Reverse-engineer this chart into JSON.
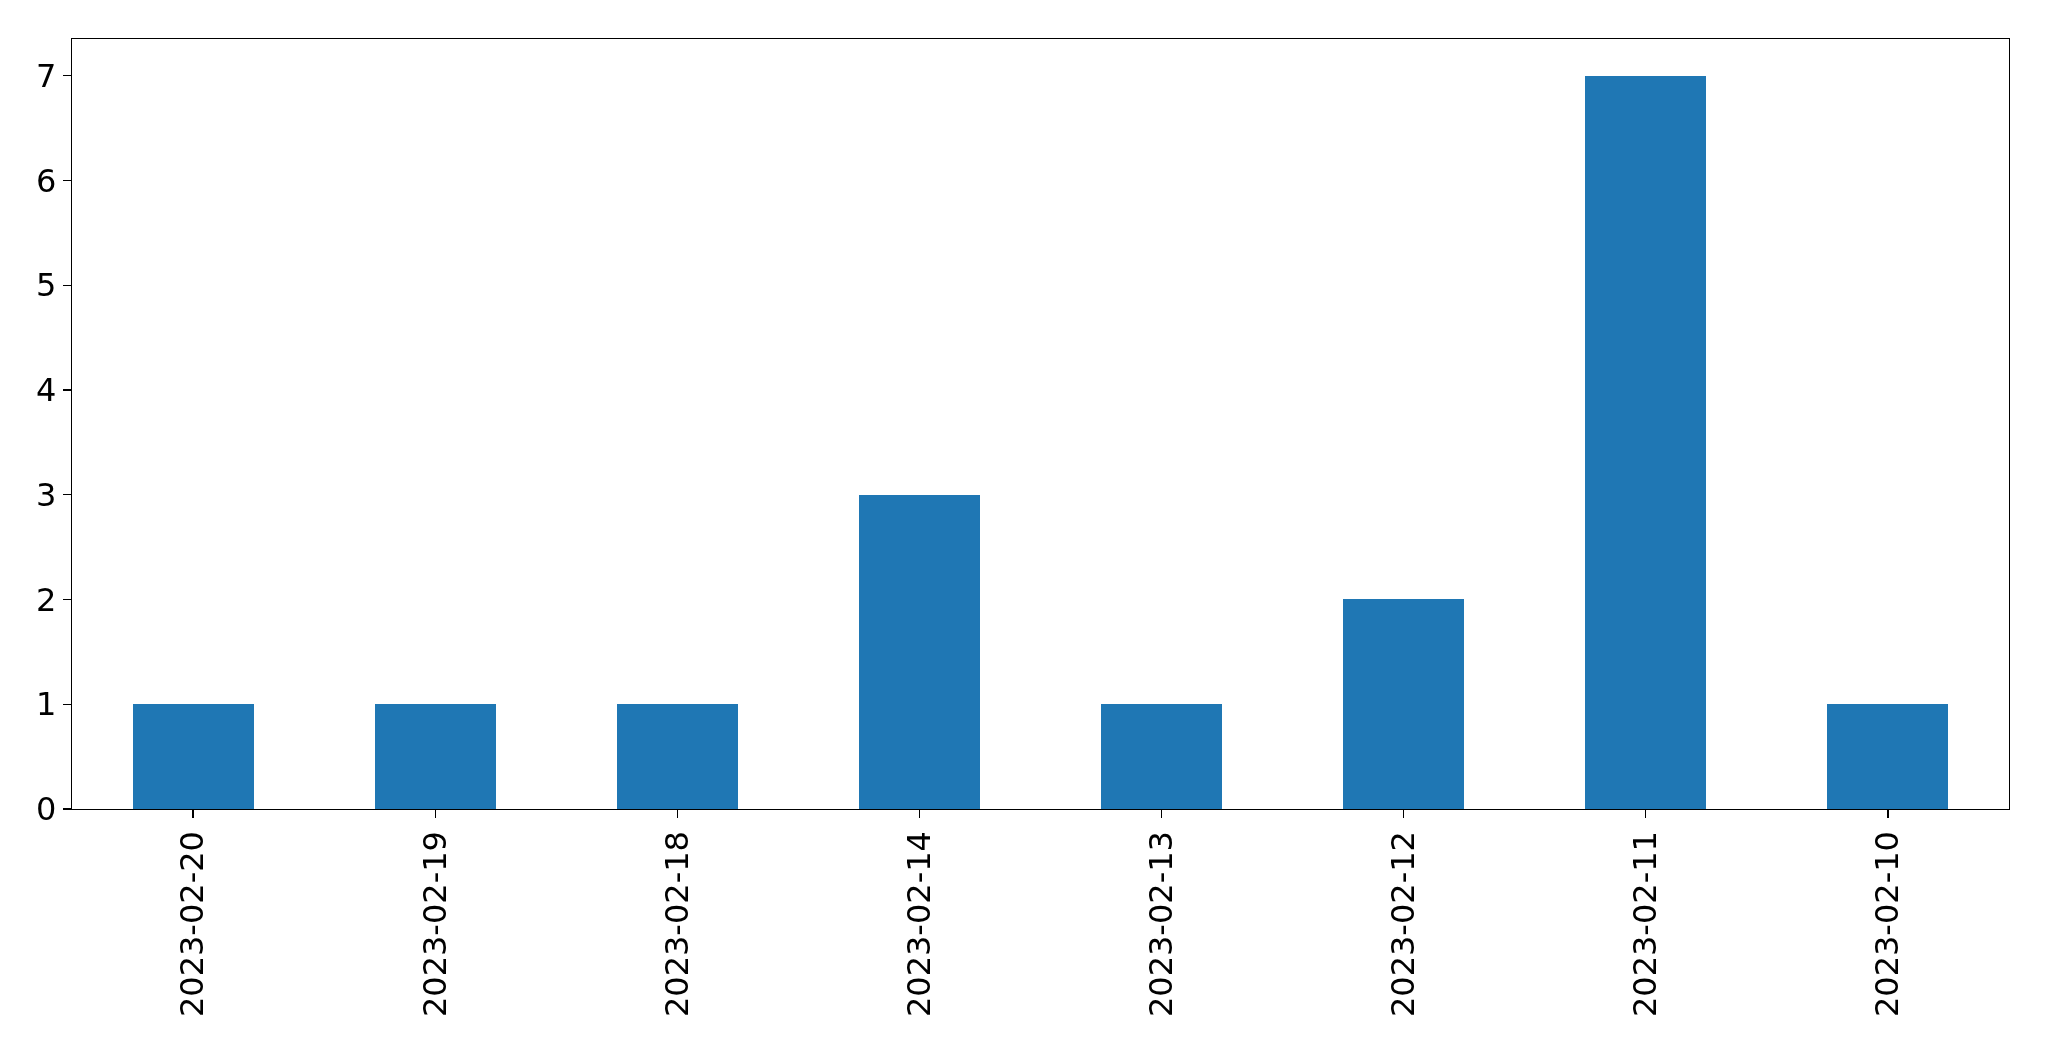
{
  "chart_data": {
    "type": "bar",
    "categories": [
      "2023-02-20",
      "2023-02-19",
      "2023-02-18",
      "2023-02-14",
      "2023-02-13",
      "2023-02-12",
      "2023-02-11",
      "2023-02-10"
    ],
    "values": [
      1,
      1,
      1,
      3,
      1,
      2,
      7,
      1
    ],
    "color": "#1f77b4",
    "ylim": [
      0,
      7.35
    ],
    "yticks": [
      0,
      1,
      2,
      3,
      4,
      5,
      6,
      7
    ],
    "grid": false
  }
}
